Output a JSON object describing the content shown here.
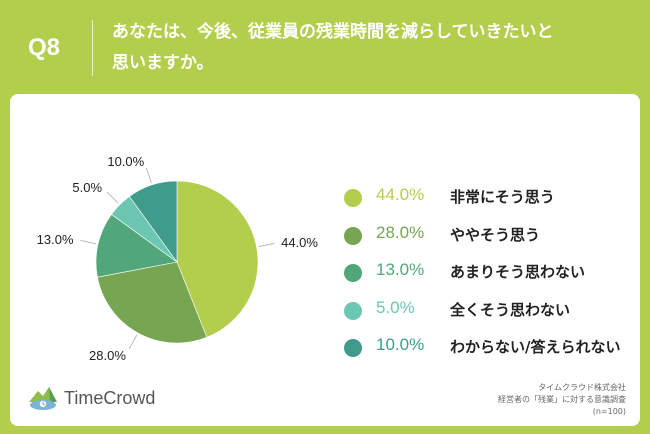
{
  "header": {
    "qnum": "Q8",
    "question_line1": "あなたは、今後、従業員の残業時間を減らしていきたいと",
    "question_line2": "思いますか。"
  },
  "chart_data": {
    "type": "pie",
    "slices": [
      {
        "label": "非常にそう思う",
        "value": 44.0,
        "display": "44.0%",
        "color": "#b3cd4c"
      },
      {
        "label": "ややそう思う",
        "value": 28.0,
        "display": "28.0%",
        "color": "#76a652"
      },
      {
        "label": "あまりそう思わない",
        "value": 13.0,
        "display": "13.0%",
        "color": "#52a77a"
      },
      {
        "label": "全くそう思わない",
        "value": 5.0,
        "display": "5.0%",
        "color": "#6cc7b2"
      },
      {
        "label": "わからない/答えられない",
        "value": 10.0,
        "display": "10.0%",
        "color": "#3f9c8c"
      }
    ]
  },
  "footer": {
    "logo_text": "TimeCrowd",
    "source_line1": "タイムクラウド株式会社",
    "source_line2": "経営者の「残業」に対する意識調査",
    "source_line3": "(n=100)"
  }
}
